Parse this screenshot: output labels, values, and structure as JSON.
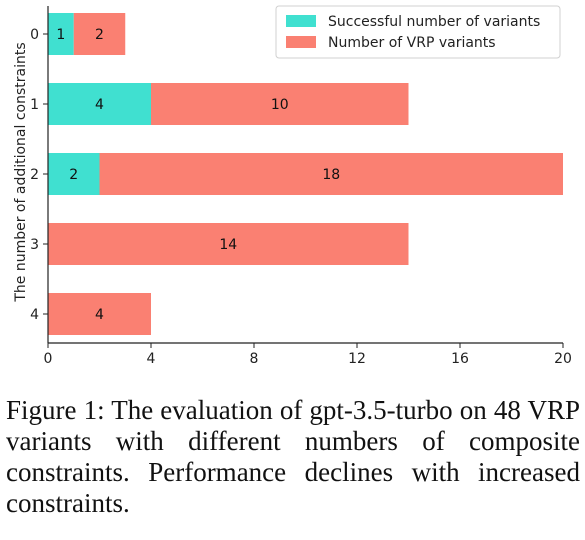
{
  "chart_data": {
    "type": "bar",
    "orientation": "horizontal",
    "stacked": true,
    "categories": [
      "0",
      "1",
      "2",
      "3",
      "4"
    ],
    "series": [
      {
        "name": "Successful number of variants",
        "values": [
          1,
          4,
          2,
          0,
          0
        ],
        "color": "#40e0d0"
      },
      {
        "name": "Number of VRP variants",
        "values": [
          2,
          10,
          18,
          14,
          4
        ],
        "color": "#fa8072"
      }
    ],
    "bar_labels": [
      {
        "category": "0",
        "series": 0,
        "text": "1"
      },
      {
        "category": "0",
        "series": 1,
        "text": "2"
      },
      {
        "category": "1",
        "series": 0,
        "text": "4"
      },
      {
        "category": "1",
        "series": 1,
        "text": "10"
      },
      {
        "category": "2",
        "series": 0,
        "text": "2"
      },
      {
        "category": "2",
        "series": 1,
        "text": "18"
      },
      {
        "category": "3",
        "series": 1,
        "text": "14"
      },
      {
        "category": "4",
        "series": 1,
        "text": "4"
      }
    ],
    "xlim": [
      0,
      20
    ],
    "xticks": [
      "0",
      "4",
      "8",
      "12",
      "16",
      "20"
    ],
    "xlabel": "",
    "ylabel": "The number of additional constraints",
    "legend_position": "top-right",
    "grid": false
  },
  "caption": "Figure 1: The evaluation of gpt-3.5-turbo on 48 VRP variants with different numbers of composite constraints. Performance declines with increased constraints."
}
